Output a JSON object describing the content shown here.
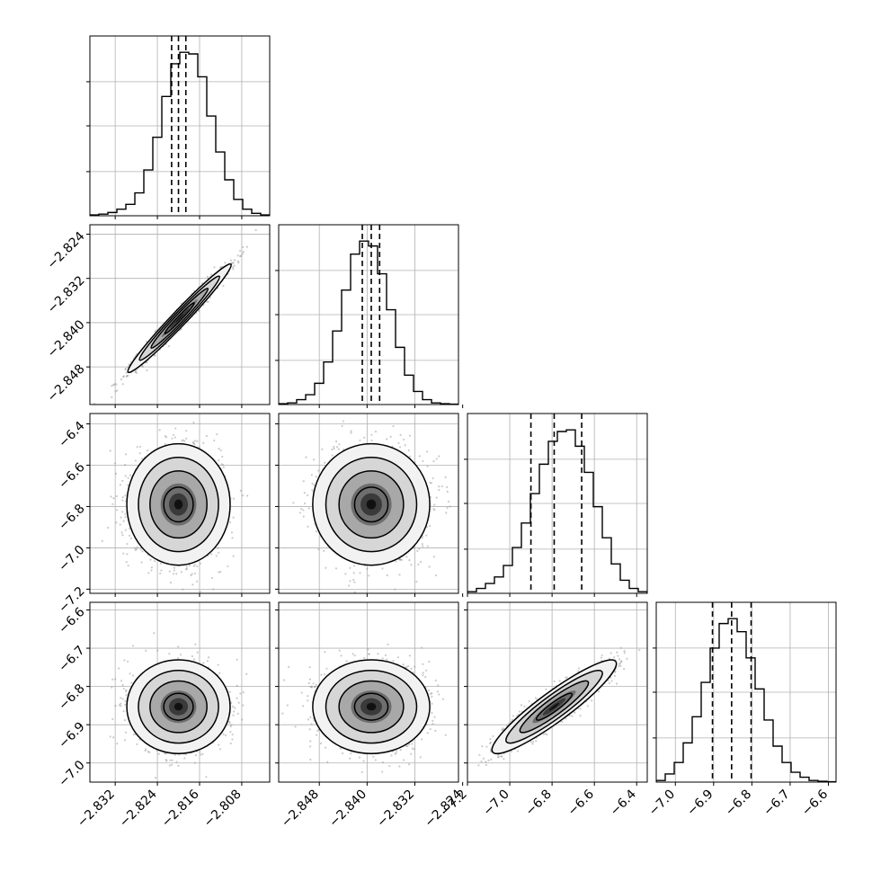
{
  "chart_data": {
    "type": "corner",
    "n_params": 4,
    "quantiles": [
      0.16,
      0.5,
      0.84
    ],
    "grid": true,
    "histograms": [
      {
        "param": 0,
        "range": [
          -2.8368,
          -2.8027
        ],
        "medians_quantiles": [
          -2.8213,
          -2.82,
          -2.8186
        ],
        "counts": [
          0.005,
          0.01,
          0.02,
          0.04,
          0.07,
          0.14,
          0.28,
          0.48,
          0.73,
          0.93,
          1.0,
          0.99,
          0.85,
          0.61,
          0.39,
          0.22,
          0.1,
          0.04,
          0.015,
          0.005
        ]
      },
      {
        "param": 1,
        "range": [
          -2.8548,
          -2.8247
        ],
        "medians_quantiles": [
          -2.8408,
          -2.8393,
          -2.8379
        ],
        "counts": [
          0.005,
          0.01,
          0.03,
          0.06,
          0.13,
          0.26,
          0.45,
          0.7,
          0.92,
          1.0,
          0.97,
          0.8,
          0.58,
          0.35,
          0.18,
          0.08,
          0.03,
          0.01,
          0.005,
          0.002
        ]
      },
      {
        "param": 2,
        "range": [
          -7.2,
          -6.35
        ],
        "medians_quantiles": [
          -6.9,
          -6.79,
          -6.66
        ],
        "counts": [
          0.01,
          0.03,
          0.06,
          0.1,
          0.17,
          0.28,
          0.43,
          0.61,
          0.79,
          0.93,
          0.99,
          1.0,
          0.9,
          0.74,
          0.53,
          0.34,
          0.18,
          0.08,
          0.03,
          0.01
        ]
      },
      {
        "param": 3,
        "range": [
          -7.05,
          -6.58
        ],
        "medians_quantiles": [
          -6.903,
          -6.853,
          -6.802
        ],
        "counts": [
          0.01,
          0.05,
          0.12,
          0.24,
          0.4,
          0.61,
          0.82,
          0.97,
          1.0,
          0.92,
          0.76,
          0.57,
          0.38,
          0.22,
          0.12,
          0.06,
          0.03,
          0.01,
          0.005,
          0.002
        ]
      }
    ],
    "pairs": [
      {
        "row": 1,
        "col": 0,
        "center": [
          -2.8198,
          -2.8392
        ],
        "sigma": [
          0.004,
          0.004
        ],
        "rho": 0.98
      },
      {
        "row": 2,
        "col": 0,
        "center": [
          -2.82,
          -6.79
        ],
        "sigma": [
          0.004,
          0.12
        ],
        "rho": 0.0
      },
      {
        "row": 2,
        "col": 1,
        "center": [
          -2.8393,
          -6.79
        ],
        "sigma": [
          0.004,
          0.12
        ],
        "rho": 0.0
      },
      {
        "row": 3,
        "col": 0,
        "center": [
          -2.82,
          -6.853
        ],
        "sigma": [
          0.004,
          0.05
        ],
        "rho": 0.0
      },
      {
        "row": 3,
        "col": 1,
        "center": [
          -2.8393,
          -6.853
        ],
        "sigma": [
          0.004,
          0.05
        ],
        "rho": 0.0
      },
      {
        "row": 3,
        "col": 2,
        "center": [
          -6.79,
          -6.853
        ],
        "sigma": [
          0.12,
          0.05
        ],
        "rho": 0.92
      }
    ],
    "axes": {
      "x": [
        {
          "range": [
            -2.8368,
            -2.8027
          ],
          "ticks": [
            -2.832,
            -2.824,
            -2.816,
            -2.808
          ],
          "labels": [
            "−2.832",
            "−2.824",
            "−2.816",
            "−2.808"
          ]
        },
        {
          "range": [
            -2.8548,
            -2.8247
          ],
          "ticks": [
            -2.848,
            -2.84,
            -2.832,
            -2.824
          ],
          "labels": [
            "−2.848",
            "−2.840",
            "−2.832",
            "−2.824"
          ]
        },
        {
          "range": [
            -7.2,
            -6.35
          ],
          "ticks": [
            -7.2,
            -7.0,
            -6.8,
            -6.6,
            -6.4
          ],
          "labels": [
            "−7.2",
            "−7.0",
            "−6.8",
            "−6.6",
            "−6.4"
          ]
        },
        {
          "range": [
            -7.05,
            -6.58
          ],
          "ticks": [
            -7.0,
            -6.9,
            -6.8,
            -6.7,
            -6.6
          ],
          "labels": [
            "−7.0",
            "−6.9",
            "−6.8",
            "−6.7",
            "−6.6"
          ]
        }
      ],
      "y": [
        null,
        {
          "range": [
            -2.8548,
            -2.8223
          ],
          "ticks": [
            -2.848,
            -2.84,
            -2.832,
            -2.824
          ],
          "labels": [
            "−2.848",
            "−2.840",
            "−2.832",
            "−2.824"
          ]
        },
        {
          "range": [
            -7.22,
            -6.35
          ],
          "ticks": [
            -7.2,
            -7.0,
            -6.8,
            -6.6,
            -6.4
          ],
          "labels": [
            "−7.2",
            "−7.0",
            "−6.8",
            "−6.6",
            "−6.4"
          ]
        },
        {
          "range": [
            -7.05,
            -6.58
          ],
          "ticks": [
            -7.0,
            -6.9,
            -6.8,
            -6.7,
            -6.6
          ],
          "labels": [
            "−7.0",
            "−6.9",
            "−6.8",
            "−6.7",
            "−6.6"
          ]
        }
      ]
    },
    "colors": {
      "hist": "#000000",
      "points": "#8c8c8c",
      "contour": "#000000",
      "grid": "#b0b0b0"
    }
  }
}
